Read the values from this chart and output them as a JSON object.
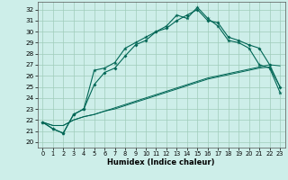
{
  "xlabel": "Humidex (Indice chaleur)",
  "bg_color": "#cdeee9",
  "grid_color": "#a0ccbb",
  "line_color": "#006655",
  "xlim": [
    -0.5,
    23.5
  ],
  "ylim": [
    19.5,
    32.7
  ],
  "yticks": [
    20,
    21,
    22,
    23,
    24,
    25,
    26,
    27,
    28,
    29,
    30,
    31,
    32
  ],
  "xticks": [
    0,
    1,
    2,
    3,
    4,
    5,
    6,
    7,
    8,
    9,
    10,
    11,
    12,
    13,
    14,
    15,
    16,
    17,
    18,
    19,
    20,
    21,
    22,
    23
  ],
  "x": [
    0,
    1,
    2,
    3,
    4,
    5,
    6,
    7,
    8,
    9,
    10,
    11,
    12,
    13,
    14,
    15,
    16,
    17,
    18,
    19,
    20,
    21,
    22,
    23
  ],
  "s1": [
    21.8,
    21.2,
    20.8,
    22.5,
    23.0,
    26.5,
    26.7,
    27.2,
    28.5,
    29.0,
    29.5,
    30.0,
    30.5,
    31.5,
    31.2,
    32.2,
    31.2,
    30.5,
    29.2,
    29.0,
    28.5,
    27.0,
    26.7,
    24.5
  ],
  "s2": [
    21.8,
    21.2,
    20.8,
    22.5,
    23.0,
    25.2,
    26.3,
    26.7,
    27.8,
    28.8,
    29.2,
    30.0,
    30.3,
    31.0,
    31.5,
    32.0,
    31.0,
    30.8,
    29.5,
    29.2,
    28.8,
    28.5,
    27.0,
    25.0
  ],
  "lin1": [
    21.8,
    21.5,
    21.5,
    22.0,
    22.3,
    22.5,
    22.8,
    23.0,
    23.3,
    23.6,
    23.9,
    24.2,
    24.5,
    24.8,
    25.1,
    25.4,
    25.7,
    25.9,
    26.1,
    26.3,
    26.5,
    26.7,
    26.8,
    25.0
  ],
  "lin2": [
    21.8,
    21.5,
    21.5,
    22.0,
    22.3,
    22.5,
    22.8,
    23.1,
    23.4,
    23.7,
    24.0,
    24.3,
    24.6,
    24.9,
    25.2,
    25.5,
    25.8,
    26.0,
    26.2,
    26.4,
    26.6,
    26.8,
    27.0,
    26.9
  ]
}
